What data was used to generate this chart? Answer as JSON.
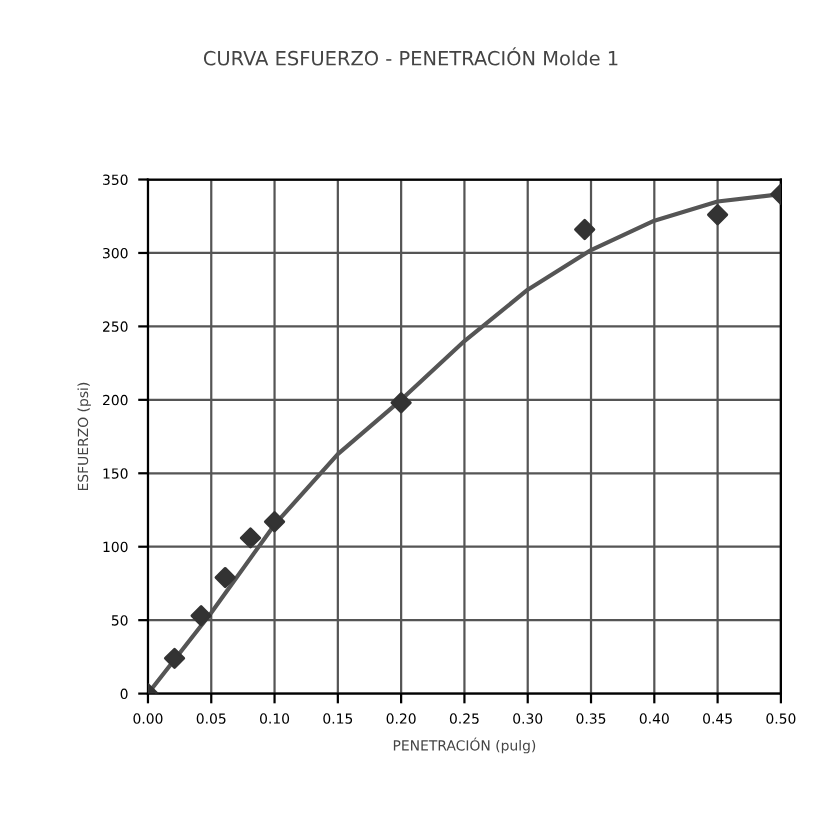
{
  "chart_data": {
    "type": "scatter",
    "title": "CURVA ESFUERZO - PENETRACIÓN Molde 1",
    "xlabel": "PENETRACIÓN (pulg)",
    "ylabel": "ESFUERZO (psi)",
    "series": [
      {
        "color": "#333333",
        "marker": "diamond",
        "x": [
          0,
          0.021,
          0.042,
          0.061,
          0.081,
          0.1,
          0.2,
          0.345,
          0.45,
          0.5
        ],
        "values": [
          0,
          24,
          53,
          79,
          106,
          117,
          198,
          316,
          326,
          340
        ]
      },
      {
        "type": "line",
        "color": "#555555",
        "marker": "none",
        "line_style": "solid",
        "x": [
          0,
          0.05,
          0.1,
          0.15,
          0.2,
          0.25,
          0.3,
          0.35,
          0.4,
          0.45,
          0.5
        ],
        "values": [
          0,
          55,
          115,
          163,
          200,
          240,
          275,
          302,
          322,
          335,
          340
        ]
      }
    ],
    "xlim": [
      0,
      0.5
    ],
    "xticks": [
      {
        "value": 0,
        "label": "0.00"
      },
      {
        "value": 0.05,
        "label": "0.05"
      },
      {
        "value": 0.1,
        "label": "0.10"
      },
      {
        "value": 0.15,
        "label": "0.15"
      },
      {
        "value": 0.2,
        "label": "0.20"
      },
      {
        "value": 0.25,
        "label": "0.25"
      },
      {
        "value": 0.3,
        "label": "0.30"
      },
      {
        "value": 0.35,
        "label": "0.35"
      },
      {
        "value": 0.4,
        "label": "0.40"
      },
      {
        "value": 0.45,
        "label": "0.45"
      },
      {
        "value": 0.5,
        "label": "0.50"
      }
    ],
    "ylim": [
      0,
      350
    ],
    "yticks": [
      0,
      50,
      100,
      150,
      200,
      250,
      300,
      350
    ],
    "grid": true,
    "legend": false
  }
}
